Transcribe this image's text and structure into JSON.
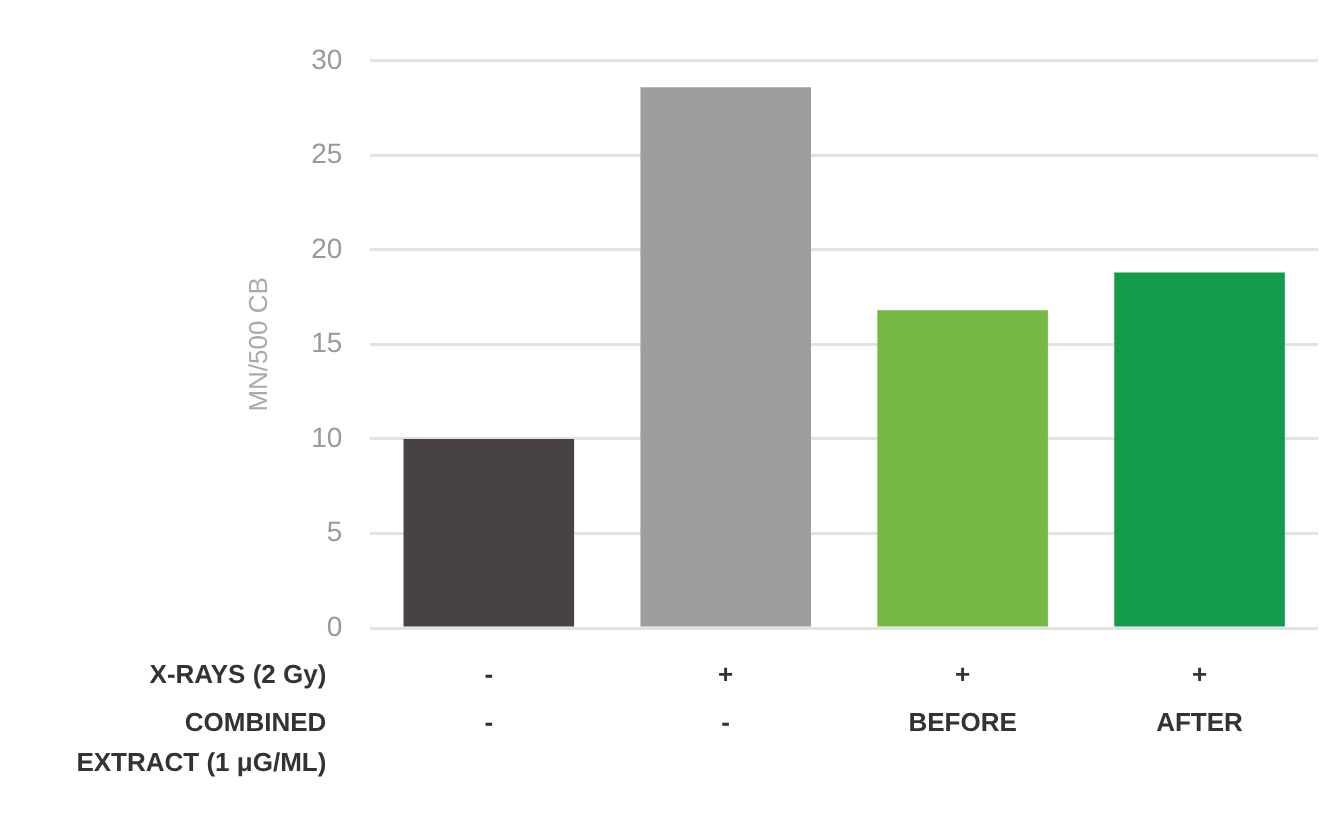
{
  "chart_data": {
    "type": "bar",
    "ylabel": "MN/500 CB",
    "categories": [
      "-\n-",
      "+\n-",
      "+\nBEFORE",
      "+\nAFTER"
    ],
    "values": [
      10,
      28.6,
      16.8,
      18.8
    ],
    "colors": [
      "#484244",
      "#9e9e9e",
      "#76b843",
      "#119b4a"
    ],
    "ylim": [
      0,
      30
    ],
    "yticks": [
      0,
      5,
      10,
      15,
      20,
      25,
      30
    ],
    "grid": "y",
    "legend": false,
    "annotations": [
      "X-RAYS (2 Gy)",
      "COMBINED EXTRACT (1 μG/ML)"
    ]
  }
}
